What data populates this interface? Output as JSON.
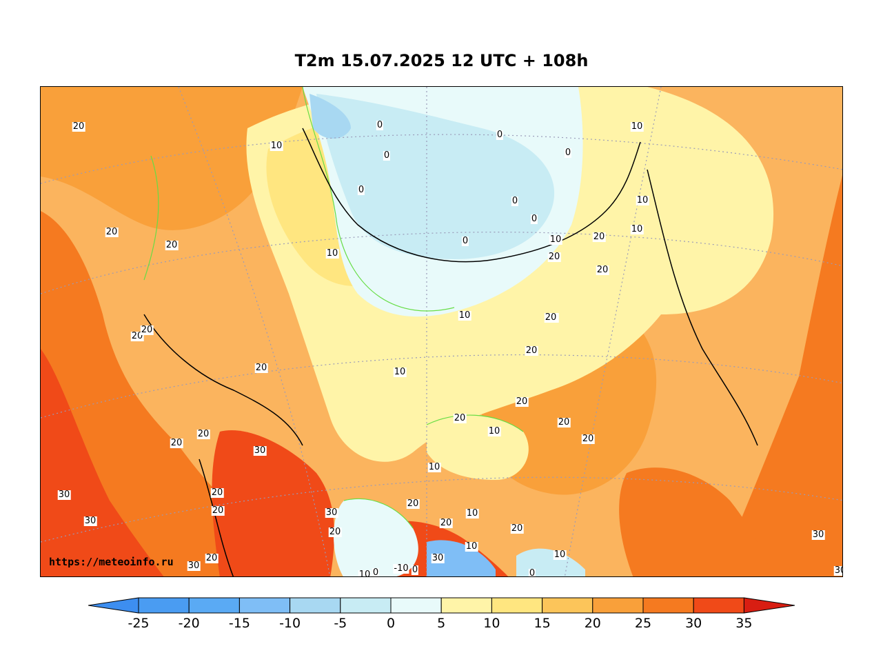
{
  "title": "T2m 15.07.2025 12 UTC + 108h",
  "watermark": "https://meteoinfo.ru",
  "colorbar": {
    "ticks": [
      "-25",
      "-20",
      "-15",
      "-10",
      "-5",
      "0",
      "5",
      "10",
      "15",
      "20",
      "25",
      "30",
      "35"
    ],
    "colors": [
      "#3d8ef0",
      "#4a9cf2",
      "#5aaaf4",
      "#7fbef6",
      "#a8d8f2",
      "#c8ecf4",
      "#e8fafa",
      "#fff4a8",
      "#ffe680",
      "#fcc55a",
      "#f9a03a",
      "#f57a20",
      "#f04a18",
      "#d81e12"
    ],
    "low_color": "#3d8ef0",
    "high_color": "#d81e12"
  },
  "contour_labels": [
    "20",
    "10",
    "0",
    "0",
    "0",
    "0",
    "0",
    "0",
    "0",
    "10",
    "10",
    "10",
    "20",
    "0",
    "20",
    "20",
    "10",
    "10",
    "20",
    "20",
    "20",
    "10",
    "20",
    "20",
    "20",
    "20",
    "20",
    "10",
    "20",
    "20",
    "20",
    "20",
    "30",
    "20",
    "10",
    "20",
    "30",
    "30",
    "20",
    "20",
    "10",
    "20",
    "30",
    "20",
    "10",
    "30",
    "20",
    "30",
    "20",
    "20",
    "10",
    "30",
    "10",
    "0",
    "-10",
    "0",
    "0",
    "10",
    "30"
  ],
  "colors": {
    "land_outline": "#000000",
    "grid": "#9a9ab8",
    "contour_green": "#66dd44"
  }
}
